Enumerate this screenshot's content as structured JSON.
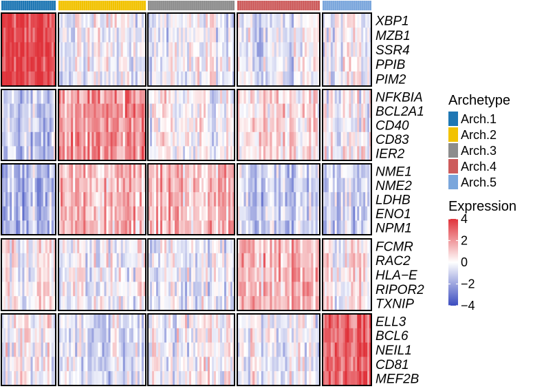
{
  "chart_data": {
    "type": "heatmap",
    "title": "",
    "xlabel": "",
    "ylabel": "",
    "archetypes": [
      {
        "name": "Arch.1",
        "color": "#1f77b4",
        "cells": 26
      },
      {
        "name": "Arch.2",
        "color": "#f2c200",
        "cells": 42
      },
      {
        "name": "Arch.3",
        "color": "#8c8c8c",
        "cells": 42
      },
      {
        "name": "Arch.4",
        "color": "#cd5c5c",
        "cells": 38
      },
      {
        "name": "Arch.5",
        "color": "#7aa6dc",
        "cells": 24
      }
    ],
    "gene_groups": [
      {
        "high_in": "Arch.1",
        "genes": [
          "XBP1",
          "MZB1",
          "SSR4",
          "PPIB",
          "PIM2"
        ]
      },
      {
        "high_in": "Arch.2",
        "genes": [
          "NFKBIA",
          "BCL2A1",
          "CD40",
          "CD83",
          "IER2"
        ]
      },
      {
        "high_in": [
          "Arch.2",
          "Arch.3"
        ],
        "genes": [
          "NME1",
          "NME2",
          "LDHB",
          "ENO1",
          "NPM1"
        ]
      },
      {
        "high_in": "Arch.4",
        "genes": [
          "FCMR",
          "RAC2",
          "HLA−E",
          "RIPOR2",
          "TXNIP"
        ]
      },
      {
        "high_in": "Arch.5",
        "genes": [
          "ELL3",
          "BCL6",
          "NEIL1",
          "CD81",
          "MEF2B"
        ]
      }
    ],
    "block_mean_expression": [
      [
        2.3,
        -0.1,
        -0.2,
        -0.3,
        -0.2
      ],
      [
        -0.6,
        1.3,
        0.0,
        0.4,
        0.0
      ],
      [
        -0.9,
        0.8,
        0.8,
        -0.7,
        -0.6
      ],
      [
        0.1,
        -0.1,
        -0.3,
        0.9,
        0.1
      ],
      [
        0.0,
        -0.3,
        -0.1,
        -0.1,
        2.0
      ]
    ],
    "color_scale": {
      "range": [
        -4,
        4
      ],
      "ticks": [
        4,
        2,
        0,
        -2,
        -4
      ],
      "low_color": "#3b4cc0",
      "mid_color": "#ffffff",
      "high_color": "#e0323a"
    }
  },
  "legend": {
    "archetype_title": "Archetype",
    "archetype_items": [
      "Arch.1",
      "Arch.2",
      "Arch.3",
      "Arch.4",
      "Arch.5"
    ],
    "expression_title": "Expression",
    "expression_ticks": [
      "4",
      "2",
      "0",
      "−2",
      "−4"
    ]
  }
}
